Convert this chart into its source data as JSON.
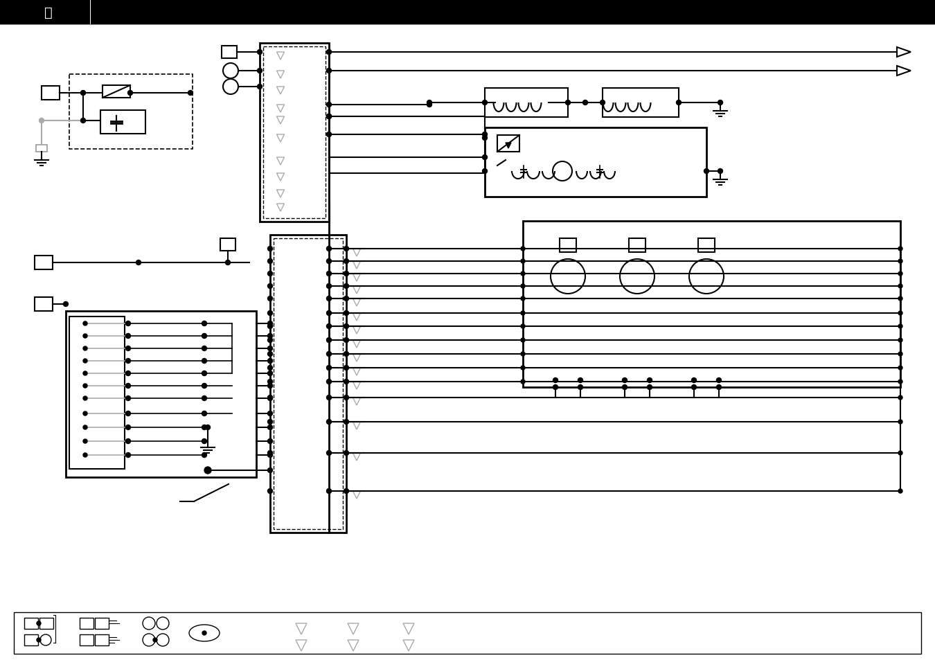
{
  "figsize": [
    13.5,
    9.54
  ],
  "dpi": 100,
  "bg_color": "#ffffff",
  "header_color": "#1a1a1a",
  "lw_thick": 2.0,
  "lw_med": 1.5,
  "lw_thin": 1.2,
  "gray": "#aaaaaa",
  "dark": "#000000"
}
